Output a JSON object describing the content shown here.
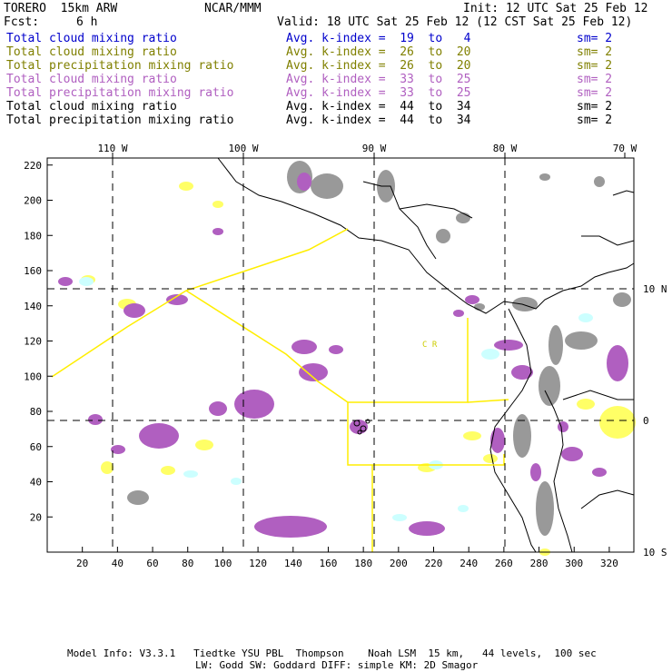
{
  "header": {
    "model": "TORERO  15km ARW",
    "center": "NCAR/MMM",
    "init": "Init: 12 UTC Sat 25 Feb 12",
    "fcst_label": "Fcst:",
    "fcst_value": "6 h",
    "valid": "Valid: 18 UTC Sat 25 Feb 12 (12 CST Sat 25 Feb 12)"
  },
  "legend": [
    {
      "field": "Total cloud mixing ratio",
      "kindex": "Avg. k-index =  19  to   4",
      "sm": "sm= 2",
      "color": "#0000cc"
    },
    {
      "field": "Total cloud mixing ratio",
      "kindex": "Avg. k-index =  26  to  20",
      "sm": "sm= 2",
      "color": "#808000"
    },
    {
      "field": "Total precipitation mixing ratio",
      "kindex": "Avg. k-index =  26  to  20",
      "sm": "sm= 2",
      "color": "#808000"
    },
    {
      "field": "Total cloud mixing ratio",
      "kindex": "Avg. k-index =  33  to  25",
      "sm": "sm= 2",
      "color": "#b05fc0"
    },
    {
      "field": "Total precipitation mixing ratio",
      "kindex": "Avg. k-index =  33  to  25",
      "sm": "sm= 2",
      "color": "#b05fc0"
    },
    {
      "field": "Total cloud mixing ratio",
      "kindex": "Avg. k-index =  44  to  34",
      "sm": "sm= 2",
      "color": "#000000"
    },
    {
      "field": "Total precipitation mixing ratio",
      "kindex": "Avg. k-index =  44  to  34",
      "sm": "sm= 2",
      "color": "#000000"
    }
  ],
  "map": {
    "lon_labels": [
      "110 W",
      "100 W",
      "90 W",
      "80 W",
      "70 W"
    ],
    "lat_labels": [
      "10 N",
      "0",
      "10 S"
    ],
    "y_ticks": [
      "220",
      "200",
      "180",
      "160",
      "140",
      "120",
      "100",
      "80",
      "60",
      "40",
      "20"
    ],
    "x_ticks": [
      "20",
      "40",
      "60",
      "80",
      "100",
      "120",
      "140",
      "160",
      "180",
      "200",
      "220",
      "240",
      "260",
      "280",
      "300",
      "320"
    ],
    "region_label": "C  R",
    "colors": {
      "yellow_shade": "#ffff66",
      "cyan_shade": "#ccffff",
      "purple_shade": "#b05fc0",
      "gray_shade": "#999999",
      "boundary": "#ffee00"
    }
  },
  "footer": {
    "line1": "Model Info: V3.3.1   Tiedtke YSU PBL  Thompson    Noah LSM  15 km,   44 levels,  100 sec",
    "line2": "LW: Godd SW: Goddard DIFF: simple KM: 2D Smagor"
  }
}
